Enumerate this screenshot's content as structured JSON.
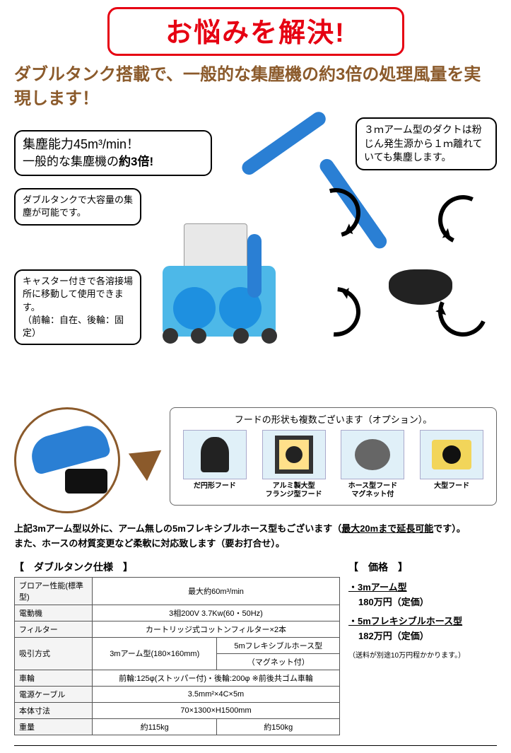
{
  "title": "お悩みを解決!",
  "headline": "ダブルタンク搭載で、一般的な集塵機の約3倍の処理風量を実現します！",
  "callouts": {
    "capacity_line1": "集塵能力45m³/min！",
    "capacity_line2_pre": "一般的な集塵機の",
    "capacity_line2_em": "約3倍!",
    "arm_duct": "３ｍアーム型のダクトは粉じん発生源から１ｍ離れていても集塵します。",
    "double_tank": "ダブルタンクで大容量の集塵が可能です。",
    "caster": "キャスター付きで各溶接場所に移動して使用できます。\n（前輪：自在、後輪：固定）"
  },
  "hood_options_title": "フードの形状も複数ございます（オプション）。",
  "hoods": [
    {
      "label": "だ円形フード"
    },
    {
      "label": "アルミ製大型\nフランジ型フード"
    },
    {
      "label": "ホース型フード\nマグネット付"
    },
    {
      "label": "大型フード"
    }
  ],
  "notes_line1_pre": "上記3mアーム型以外に、アーム無しの5mフレキシブルホース型もございます（",
  "notes_line1_ul": "最大20mまで延長可能",
  "notes_line1_post": "です）。",
  "notes_line2": "また、ホースの材質変更など柔軟に対応致します（要お打合せ）。",
  "spec_title": "【　ダブルタンク仕様　】",
  "price_title": "【　価格　】",
  "spec_rows": [
    {
      "h": "ブロアー性能(標準型)",
      "cells": [
        "最大約60m³/min"
      ],
      "span": 2
    },
    {
      "h": "電動機",
      "cells": [
        "3相200V 3.7Kw(60・50Hz)"
      ],
      "span": 2
    },
    {
      "h": "フィルター",
      "cells": [
        "カートリッジ式コットンフィルター×2本"
      ],
      "span": 2
    }
  ],
  "suction_h": "吸引方式",
  "suction_left": "3mアーム型(180×160mm)",
  "suction_r1": "5mフレキシブルホース型",
  "suction_r2": "（マグネット付）",
  "spec_rows2": [
    {
      "h": "車輪",
      "cells": [
        "前輪:125φ(ストッパー付)・後輪:200φ ※前後共ゴム車輪"
      ],
      "span": 2
    },
    {
      "h": "電源ケーブル",
      "cells": [
        "3.5mm²×4C×5m"
      ],
      "span": 2
    },
    {
      "h": "本体寸法",
      "cells": [
        "70×1300×H1500mm"
      ],
      "span": 2
    },
    {
      "h": "重量",
      "cells": [
        "約115kg",
        "約150kg"
      ],
      "span": 1
    }
  ],
  "prices": [
    {
      "name": "・3mアーム型",
      "val": "180万円（定価）"
    },
    {
      "name": "・5mフレキシブルホース型",
      "val": "182万円（定価）"
    }
  ],
  "price_note": "（送料が別途10万円程かかります。）",
  "colors": {
    "red": "#e60012",
    "brown": "#8b5a2b",
    "machine_blue": "#4db8e8",
    "arm_blue": "#2a7fd4"
  }
}
